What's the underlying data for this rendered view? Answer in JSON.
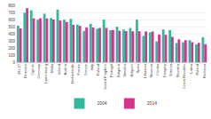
{
  "chart_data": {
    "type": "bar",
    "categories": [
      "EU-27",
      "Denmark",
      "Cyprus",
      "Germany",
      "Luxembourg",
      "Malta",
      "Ireland",
      "Austria",
      "Netherlands",
      "France",
      "Greece",
      "Italy",
      "Finland",
      "United Kingdom",
      "Portugal",
      "Bulgaria",
      "Sweden",
      "Belgium",
      "Spain",
      "Lithuania",
      "Slovenia",
      "Croatia",
      "Hungary",
      "Estonia",
      "Slovakia",
      "Czech Republic",
      "Latvia",
      "Poland",
      "Romania"
    ],
    "series": [
      {
        "name": "2004",
        "color": "#33b89c",
        "values": [
          515,
          696,
          730,
          600,
          682,
          620,
          740,
          600,
          610,
          530,
          440,
          540,
          470,
          600,
          450,
          500,
          460,
          480,
          600,
          370,
          420,
          290,
          460,
          450,
          270,
          280,
          310,
          250,
          350
        ]
      },
      {
        "name": "2014",
        "color": "#d6338f",
        "values": [
          475,
          759,
          617,
          618,
          616,
          600,
          586,
          565,
          527,
          511,
          488,
          488,
          482,
          482,
          453,
          442,
          438,
          435,
          435,
          433,
          432,
          387,
          385,
          357,
          321,
          310,
          281,
          272,
          254
        ]
      }
    ],
    "ylim": [
      0,
      800
    ],
    "yticks": [
      0,
      100,
      200,
      300,
      400,
      500,
      600,
      700,
      800
    ],
    "grid": true,
    "legend": "bottom"
  }
}
